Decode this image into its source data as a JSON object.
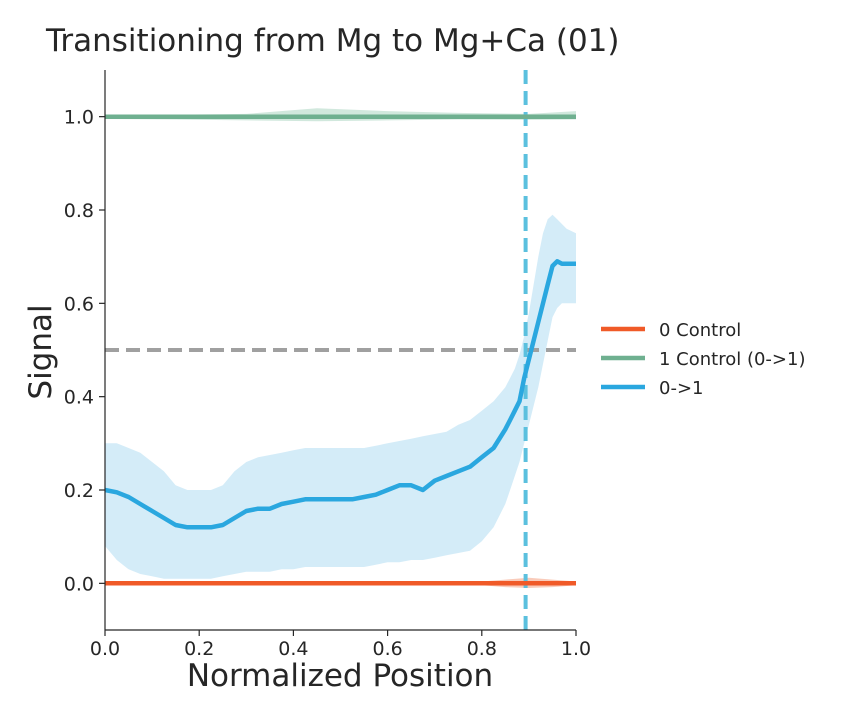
{
  "chart_data": {
    "type": "line",
    "title": "Transitioning from Mg to Mg+Ca (01)",
    "xlabel": "Normalized Position",
    "ylabel": "Signal",
    "xlim": [
      0.0,
      1.0
    ],
    "ylim": [
      -0.1,
      1.1
    ],
    "x_ticks": [
      0.0,
      0.2,
      0.4,
      0.6,
      0.8,
      1.0
    ],
    "x_tick_labels": [
      "0.0",
      "0.2",
      "0.4",
      "0.6",
      "0.8",
      "1.0"
    ],
    "y_ticks": [
      0.0,
      0.2,
      0.4,
      0.6,
      0.8,
      1.0
    ],
    "y_tick_labels": [
      "0.0",
      "0.2",
      "0.4",
      "0.6",
      "0.8",
      "1.0"
    ],
    "grid": false,
    "legend_position": "right",
    "reference_lines": [
      {
        "orientation": "horizontal",
        "value": 0.5,
        "color": "#a0a0a0",
        "style": "dashed"
      },
      {
        "orientation": "vertical",
        "value": 0.893,
        "color": "#5bc0de",
        "style": "dashed"
      }
    ],
    "series": [
      {
        "name": "0 Control",
        "color": "#f05a28",
        "band_color": "#f5a88c",
        "x": [
          0.0,
          0.2,
          0.4,
          0.6,
          0.8,
          0.85,
          0.9,
          0.95,
          1.0
        ],
        "y": [
          0.0,
          0.0,
          0.0,
          0.0,
          0.0,
          0.0,
          0.0,
          0.0,
          0.0
        ],
        "lower": [
          -0.002,
          -0.002,
          -0.002,
          -0.002,
          -0.004,
          -0.008,
          -0.01,
          -0.008,
          -0.004
        ],
        "upper": [
          0.002,
          0.002,
          0.002,
          0.002,
          0.004,
          0.008,
          0.012,
          0.008,
          0.004
        ]
      },
      {
        "name": "1 Control (0->1)",
        "color": "#6fb090",
        "band_color": "#b3d9c6",
        "x": [
          0.0,
          0.15,
          0.3,
          0.45,
          0.6,
          0.75,
          0.9,
          1.0
        ],
        "y": [
          1.0,
          1.0,
          1.0,
          1.0,
          1.0,
          1.0,
          1.0,
          1.0
        ],
        "lower": [
          0.995,
          0.994,
          0.992,
          0.99,
          0.992,
          0.994,
          0.993,
          0.994
        ],
        "upper": [
          1.004,
          1.004,
          1.006,
          1.018,
          1.012,
          1.008,
          1.006,
          1.012
        ]
      },
      {
        "name": "0->1",
        "color": "#2aa7df",
        "band_color": "#b8e0f3",
        "x": [
          0.0,
          0.025,
          0.05,
          0.075,
          0.1,
          0.125,
          0.15,
          0.175,
          0.2,
          0.225,
          0.25,
          0.275,
          0.3,
          0.325,
          0.35,
          0.375,
          0.4,
          0.425,
          0.45,
          0.475,
          0.5,
          0.525,
          0.55,
          0.575,
          0.6,
          0.625,
          0.65,
          0.675,
          0.7,
          0.725,
          0.75,
          0.775,
          0.8,
          0.825,
          0.85,
          0.86,
          0.87,
          0.88,
          0.89,
          0.9,
          0.91,
          0.92,
          0.93,
          0.94,
          0.95,
          0.96,
          0.97,
          0.98,
          1.0
        ],
        "y": [
          0.2,
          0.195,
          0.185,
          0.17,
          0.155,
          0.14,
          0.125,
          0.12,
          0.12,
          0.12,
          0.125,
          0.14,
          0.155,
          0.16,
          0.16,
          0.17,
          0.175,
          0.18,
          0.18,
          0.18,
          0.18,
          0.18,
          0.185,
          0.19,
          0.2,
          0.21,
          0.21,
          0.2,
          0.22,
          0.23,
          0.24,
          0.25,
          0.27,
          0.29,
          0.33,
          0.35,
          0.37,
          0.39,
          0.44,
          0.48,
          0.52,
          0.56,
          0.6,
          0.64,
          0.68,
          0.69,
          0.685,
          0.685,
          0.685
        ],
        "lower": [
          0.08,
          0.05,
          0.03,
          0.02,
          0.015,
          0.01,
          0.01,
          0.01,
          0.01,
          0.01,
          0.015,
          0.02,
          0.025,
          0.025,
          0.025,
          0.03,
          0.03,
          0.035,
          0.035,
          0.035,
          0.035,
          0.035,
          0.035,
          0.04,
          0.045,
          0.045,
          0.05,
          0.05,
          0.055,
          0.06,
          0.065,
          0.07,
          0.09,
          0.12,
          0.17,
          0.2,
          0.23,
          0.26,
          0.3,
          0.34,
          0.38,
          0.42,
          0.47,
          0.52,
          0.57,
          0.59,
          0.6,
          0.6,
          0.6
        ],
        "upper": [
          0.3,
          0.3,
          0.29,
          0.28,
          0.26,
          0.24,
          0.21,
          0.2,
          0.2,
          0.2,
          0.21,
          0.24,
          0.26,
          0.27,
          0.275,
          0.28,
          0.285,
          0.29,
          0.29,
          0.29,
          0.29,
          0.29,
          0.29,
          0.295,
          0.3,
          0.305,
          0.31,
          0.315,
          0.32,
          0.325,
          0.34,
          0.35,
          0.37,
          0.39,
          0.42,
          0.44,
          0.46,
          0.49,
          0.53,
          0.58,
          0.64,
          0.7,
          0.75,
          0.78,
          0.79,
          0.78,
          0.77,
          0.76,
          0.75
        ]
      }
    ]
  }
}
